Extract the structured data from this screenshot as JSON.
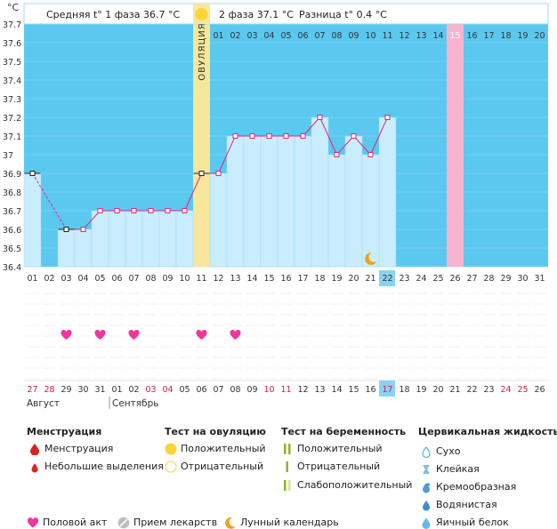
{
  "chart_data": {
    "type": "line",
    "y_unit": "°C",
    "ylim": [
      36.4,
      37.7
    ],
    "yticks": [
      "37.7",
      "37.6",
      "37.5",
      "37.4",
      "37.3",
      "37.2",
      "37.1",
      "37",
      "36.9",
      "36.8",
      "36.7",
      "36.6",
      "36.5",
      "36.4"
    ],
    "header": {
      "phase1_label": "Средняя t° 1 фаза",
      "phase1_value": "36.7 °C",
      "phase2_label": "2 фаза",
      "phase2_value": "37.1 °C",
      "diff_label": "Разница t°",
      "diff_value": "0.4 °C"
    },
    "ovulation_label": "ОВУЛЯЦИЯ",
    "cycle_days_top": [
      1,
      2,
      3,
      4,
      5,
      6,
      7,
      8,
      9,
      10,
      11,
      12,
      13,
      14,
      15,
      16,
      17,
      18,
      19,
      20,
      21,
      22,
      23,
      24,
      25,
      26,
      27,
      28,
      29,
      30,
      31
    ],
    "top_labels": [
      "",
      "",
      "",
      "",
      "",
      "",
      "",
      "",
      "",
      "",
      "",
      "01",
      "02",
      "03",
      "04",
      "05",
      "06",
      "07",
      "08",
      "09",
      "10",
      "11",
      "12",
      "13",
      "14",
      "15",
      "16",
      "17",
      "18",
      "19",
      "20"
    ],
    "bottom_cycle_days": [
      "01",
      "02",
      "03",
      "04",
      "05",
      "06",
      "07",
      "08",
      "09",
      "10",
      "11",
      "12",
      "13",
      "14",
      "15",
      "16",
      "17",
      "18",
      "19",
      "20",
      "21",
      "22",
      "23",
      "24",
      "25",
      "26",
      "27",
      "28",
      "29",
      "30",
      "31"
    ],
    "dates": [
      "27",
      "28",
      "29",
      "30",
      "31",
      "01",
      "02",
      "03",
      "04",
      "05",
      "06",
      "07",
      "08",
      "09",
      "10",
      "11",
      "12",
      "13",
      "14",
      "15",
      "16",
      "17",
      "18",
      "19",
      "20",
      "21",
      "22",
      "23",
      "24",
      "25",
      "26"
    ],
    "red_date_indices": [
      0,
      1,
      7,
      8,
      14,
      15,
      21,
      28,
      29
    ],
    "highlight_index": 21,
    "month_labels": [
      "Август",
      "Сентябрь"
    ],
    "ovulation_index": 10,
    "pink_day_index": 25,
    "temperatures": [
      36.9,
      null,
      36.6,
      36.6,
      36.7,
      36.7,
      36.7,
      36.7,
      36.7,
      36.7,
      36.9,
      36.9,
      37.1,
      37.1,
      37.1,
      37.1,
      37.1,
      37.2,
      37.0,
      37.1,
      37.0,
      37.2
    ],
    "dashed_segments": [
      [
        0,
        2
      ]
    ],
    "sex_day_indices": [
      2,
      4,
      6,
      10,
      12
    ],
    "moon_day_indices": [
      20
    ],
    "colors": {
      "blue_bg": "#5bc8f0",
      "bar_fill": "#c9edfc",
      "line": "#e0287a",
      "ovulation": "#f7e79c",
      "pink_day": "#f8b4cf",
      "heart": "#f0379a",
      "moon": "#f0a020"
    }
  },
  "legend": {
    "menstruation": {
      "title": "Менструация",
      "items": [
        "Менструация",
        "Небольшие выделения"
      ]
    },
    "ovulation_test": {
      "title": "Тест на овуляцию",
      "items": [
        "Положительный",
        "Отрицательный"
      ]
    },
    "pregnancy_test": {
      "title": "Тест на беременность",
      "items": [
        "Положительный",
        "Отрицательный",
        "Слабоположительный"
      ]
    },
    "cervical": {
      "title": "Цервикальная жидкость",
      "items": [
        "Сухо",
        "Клейкая",
        "Кремообразная",
        "Водянистая",
        "Яичный белок"
      ]
    },
    "bottom": [
      "Половой акт",
      "Прием лекарств",
      "Лунный календарь"
    ]
  }
}
